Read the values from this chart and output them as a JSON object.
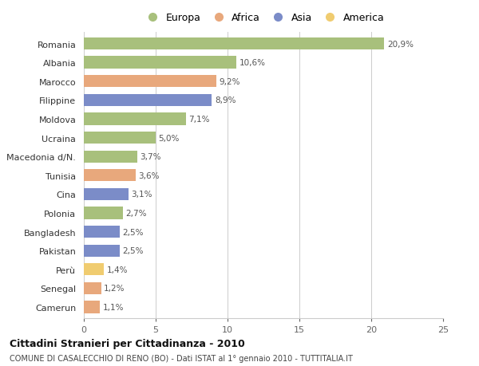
{
  "countries": [
    "Romania",
    "Albania",
    "Marocco",
    "Filippine",
    "Moldova",
    "Ucraina",
    "Macedonia d/N.",
    "Tunisia",
    "Cina",
    "Polonia",
    "Bangladesh",
    "Pakistan",
    "Perù",
    "Senegal",
    "Camerun"
  ],
  "values": [
    20.9,
    10.6,
    9.2,
    8.9,
    7.1,
    5.0,
    3.7,
    3.6,
    3.1,
    2.7,
    2.5,
    2.5,
    1.4,
    1.2,
    1.1
  ],
  "labels": [
    "20,9%",
    "10,6%",
    "9,2%",
    "8,9%",
    "7,1%",
    "5,0%",
    "3,7%",
    "3,6%",
    "3,1%",
    "2,7%",
    "2,5%",
    "2,5%",
    "1,4%",
    "1,2%",
    "1,1%"
  ],
  "continents": [
    "Europa",
    "Europa",
    "Africa",
    "Asia",
    "Europa",
    "Europa",
    "Europa",
    "Africa",
    "Asia",
    "Europa",
    "Asia",
    "Asia",
    "America",
    "Africa",
    "Africa"
  ],
  "colors": {
    "Europa": "#a8c07c",
    "Africa": "#e8a87c",
    "Asia": "#7b8cc8",
    "America": "#f0cc70"
  },
  "legend_order": [
    "Europa",
    "Africa",
    "Asia",
    "America"
  ],
  "xlim": [
    0,
    25
  ],
  "xticks": [
    0,
    5,
    10,
    15,
    20,
    25
  ],
  "title": "Cittadini Stranieri per Cittadinanza - 2010",
  "subtitle": "COMUNE DI CASALECCHIO DI RENO (BO) - Dati ISTAT al 1° gennaio 2010 - TUTTITALIA.IT",
  "background_color": "#ffffff",
  "bar_height": 0.65,
  "grid_color": "#cccccc"
}
